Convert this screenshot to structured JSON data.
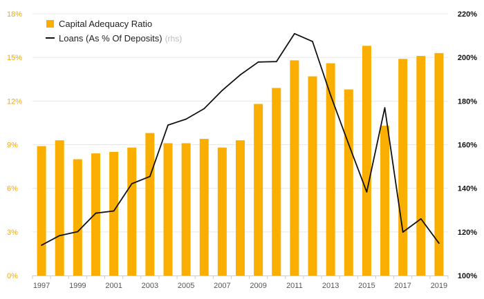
{
  "chart_data": {
    "type": "bar+line",
    "categories": [
      "1997",
      "1998",
      "1999",
      "2000",
      "2001",
      "2002",
      "2003",
      "2004",
      "2005",
      "2006",
      "2007",
      "2008",
      "2009",
      "2010",
      "2011",
      "2012",
      "2013",
      "2014",
      "2015",
      "2016",
      "2017",
      "2018",
      "2019"
    ],
    "x_tick_labels": [
      "1997",
      "1999",
      "2001",
      "2003",
      "2005",
      "2007",
      "2009",
      "2011",
      "2013",
      "2015",
      "2017",
      "2019"
    ],
    "series": [
      {
        "name": "Capital Adequacy Ratio",
        "type": "bar",
        "axis": "left",
        "color": "#f9ae00",
        "values": [
          8.9,
          9.3,
          8.0,
          8.4,
          8.5,
          8.8,
          9.8,
          9.1,
          9.1,
          9.4,
          8.8,
          9.3,
          11.8,
          12.9,
          14.8,
          13.7,
          14.6,
          12.8,
          15.8,
          10.3,
          14.9,
          15.1,
          15.3
        ]
      },
      {
        "name": "Loans (As % Of Deposits)",
        "name_suffix": "(rhs)",
        "type": "line",
        "axis": "right",
        "color": "#111111",
        "values": [
          113.9,
          118.3,
          120.1,
          128.6,
          129.6,
          142.1,
          145.4,
          169.0,
          171.7,
          176.5,
          184.9,
          192.0,
          197.9,
          198.1,
          210.9,
          207.3,
          182.6,
          160.2,
          138.3,
          176.9,
          119.9,
          126.0,
          114.8
        ]
      }
    ],
    "y_left": {
      "ticks": [
        "0%",
        "3%",
        "6%",
        "9%",
        "12%",
        "15%",
        "18%"
      ],
      "ylim": [
        0,
        18
      ]
    },
    "y_right": {
      "ticks": [
        "100%",
        "120%",
        "140%",
        "160%",
        "180%",
        "200%",
        "220%"
      ],
      "ylim": [
        100,
        220
      ]
    },
    "grid": true,
    "legend": "top-left"
  }
}
